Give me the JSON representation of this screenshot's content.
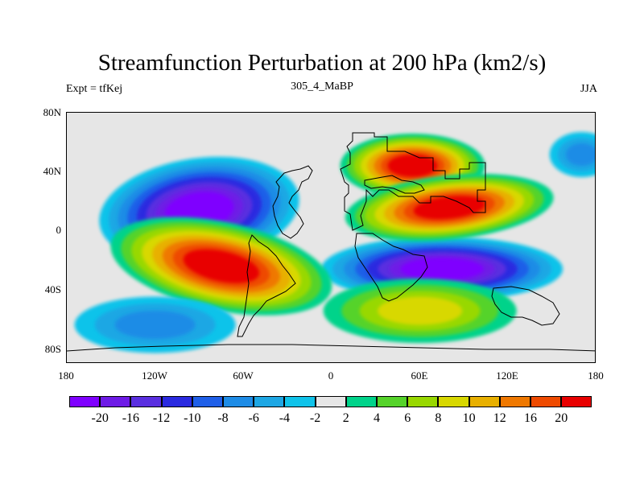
{
  "title": "Streamfunction Perturbation at 200 hPa (km2/s)",
  "subtitle_left": "Expt = tfKej",
  "subtitle_center": "305_4_MaBP",
  "subtitle_right": "JJA",
  "lat_labels": [
    "80N",
    "40N",
    "0",
    "40S",
    "80S"
  ],
  "lon_labels": [
    "180",
    "120W",
    "60W",
    "0",
    "60E",
    "120E",
    "180"
  ],
  "colorbar": {
    "colors": [
      "#7f00ff",
      "#6e1be6",
      "#5a2fe0",
      "#2a2ae0",
      "#1f5fe8",
      "#1e8ce6",
      "#1ea7e4",
      "#10c3ea",
      "#e6e6e6",
      "#00d38a",
      "#55d32a",
      "#98d800",
      "#d8d800",
      "#e8b000",
      "#ef7800",
      "#ee4a00",
      "#e80000"
    ],
    "labels": [
      "-20",
      "-16",
      "-12",
      "-10",
      "-8",
      "-6",
      "-4",
      "-2",
      "2",
      "4",
      "6",
      "8",
      "10",
      "12",
      "16",
      "20"
    ]
  },
  "chart_data": {
    "type": "heatmap",
    "variable": "Streamfunction Perturbation at 200 hPa",
    "units": "km2/s",
    "season": "JJA",
    "experiment": "tfKej",
    "case": "305_4_MaBP",
    "lon_range": [
      -180,
      180
    ],
    "lat_range": [
      -90,
      90
    ],
    "features": [
      {
        "type": "low",
        "center_lon": -90,
        "center_lat": 20,
        "value": -20
      },
      {
        "type": "low",
        "center_lon": 75,
        "center_lat": -22,
        "value": -20
      },
      {
        "type": "high",
        "center_lon": -75,
        "center_lat": -20,
        "value": 24
      },
      {
        "type": "high",
        "center_lon": 55,
        "center_lat": 52,
        "value": 20
      },
      {
        "type": "high",
        "center_lon": 80,
        "center_lat": 22,
        "value": 20
      },
      {
        "type": "high",
        "center_lon": 60,
        "center_lat": -52,
        "value": 9
      },
      {
        "type": "low",
        "center_lon": 170,
        "center_lat": 60,
        "value": -6
      },
      {
        "type": "low",
        "center_lon": -120,
        "center_lat": -62,
        "value": -6
      }
    ]
  }
}
